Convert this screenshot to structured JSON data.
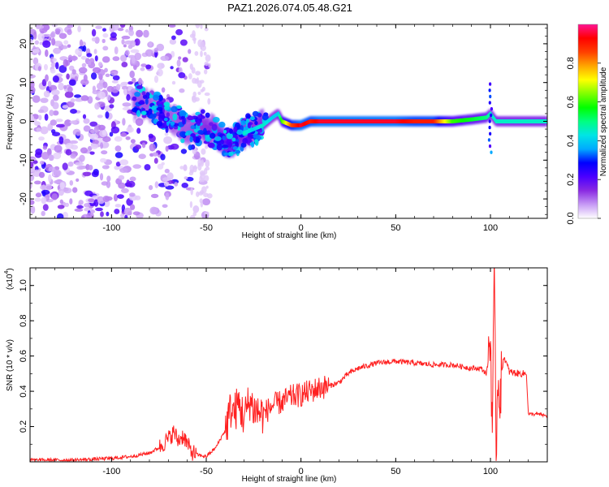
{
  "title": "PAZ1.2026.074.05.48.G21",
  "chart_data": [
    {
      "type": "heatmap",
      "name": "spectrogram",
      "xlabel": "Height of straight line (km)",
      "ylabel": "Frequency (Hz)",
      "xlim": [
        -143,
        130
      ],
      "ylim": [
        -25,
        25
      ],
      "xticks": [
        -100,
        -50,
        0,
        50,
        100
      ],
      "xtick_labels": [
        "-100",
        "-50",
        "0",
        "50",
        "100"
      ],
      "yticks": [
        -20,
        -10,
        0,
        10,
        20
      ],
      "ytick_labels": [
        "-20",
        "-10",
        "0",
        "10",
        "20"
      ],
      "colorbar": {
        "label": "Normalized spectral amplitude",
        "range": [
          0,
          1
        ],
        "ticks": [
          0.0,
          0.2,
          0.4,
          0.6,
          0.8
        ],
        "tick_labels": [
          "0.0",
          "0.2",
          "0.4",
          "0.6",
          "0.8"
        ],
        "colormap": [
          "#ffffff",
          "#c79bf5",
          "#8a2be2",
          "#4b00ff",
          "#0000ff",
          "#00aaff",
          "#00e5e5",
          "#00ff80",
          "#00ff00",
          "#80ff00",
          "#ffff00",
          "#ffa500",
          "#ff4000",
          "#ff0000",
          "#ff1493"
        ]
      },
      "ridge": {
        "x": [
          -85,
          -75,
          -65,
          -58,
          -52,
          -45,
          -40,
          -35,
          -30,
          -25,
          -20,
          -15,
          -12,
          -10,
          -5,
          0,
          5,
          10,
          20,
          30,
          40,
          50,
          60,
          70,
          80,
          90,
          98,
          100,
          103,
          110,
          120,
          130
        ],
        "freq": [
          5,
          3,
          0,
          -3,
          -1,
          -3,
          -5,
          -5,
          -3,
          -2,
          -1,
          1,
          2,
          0,
          -1,
          -1,
          0,
          0,
          0,
          0,
          0,
          0,
          0,
          0,
          0,
          0.5,
          1,
          2,
          0,
          0,
          0,
          0
        ],
        "amplitude": [
          0.35,
          0.3,
          0.3,
          0.35,
          0.4,
          0.45,
          0.55,
          0.55,
          0.45,
          0.4,
          0.45,
          0.4,
          0.4,
          0.6,
          0.85,
          0.95,
          0.9,
          0.95,
          0.95,
          0.95,
          0.95,
          0.95,
          0.9,
          0.9,
          0.6,
          0.55,
          0.5,
          0.45,
          0.45,
          0.45,
          0.45,
          0.45
        ]
      }
    },
    {
      "type": "line",
      "name": "snr",
      "xlabel": "Height of straight line (km)",
      "ylabel": "SNR (10 * v/v)",
      "y_multiplier": "(x10",
      "y_multiplier_exp": "4",
      "xlim": [
        -143,
        130
      ],
      "ylim": [
        0,
        1.1
      ],
      "xticks": [
        -100,
        -50,
        0,
        50,
        100
      ],
      "xtick_labels": [
        "-100",
        "-50",
        "0",
        "50",
        "100"
      ],
      "yticks": [
        0.2,
        0.4,
        0.6,
        0.8,
        1.0
      ],
      "ytick_labels": [
        "0.2",
        "0.4",
        "0.6",
        "0.8",
        "1.0"
      ],
      "color": "#ff2020",
      "series": [
        {
          "name": "SNR",
          "x": [
            -143,
            -120,
            -100,
            -90,
            -80,
            -75,
            -70,
            -67,
            -65,
            -62,
            -60,
            -58,
            -55,
            -50,
            -45,
            -40,
            -37,
            -35,
            -33,
            -30,
            -27,
            -25,
            -22,
            -20,
            -15,
            -10,
            -5,
            0,
            5,
            10,
            15,
            20,
            25,
            30,
            40,
            50,
            60,
            70,
            80,
            90,
            95,
            98,
            100,
            101,
            102,
            103,
            104,
            105,
            107,
            110,
            115,
            118,
            119,
            120,
            125,
            130
          ],
          "y": [
            0.01,
            0.01,
            0.02,
            0.03,
            0.05,
            0.08,
            0.13,
            0.17,
            0.12,
            0.15,
            0.1,
            0.06,
            0.04,
            0.03,
            0.08,
            0.18,
            0.3,
            0.28,
            0.33,
            0.25,
            0.35,
            0.3,
            0.28,
            0.27,
            0.32,
            0.34,
            0.37,
            0.38,
            0.4,
            0.42,
            0.43,
            0.45,
            0.5,
            0.53,
            0.56,
            0.57,
            0.56,
            0.55,
            0.55,
            0.53,
            0.53,
            0.5,
            0.7,
            0.2,
            0.98,
            0.1,
            0.5,
            0.4,
            0.6,
            0.51,
            0.5,
            0.5,
            0.5,
            0.27,
            0.27,
            0.26
          ]
        }
      ]
    }
  ]
}
